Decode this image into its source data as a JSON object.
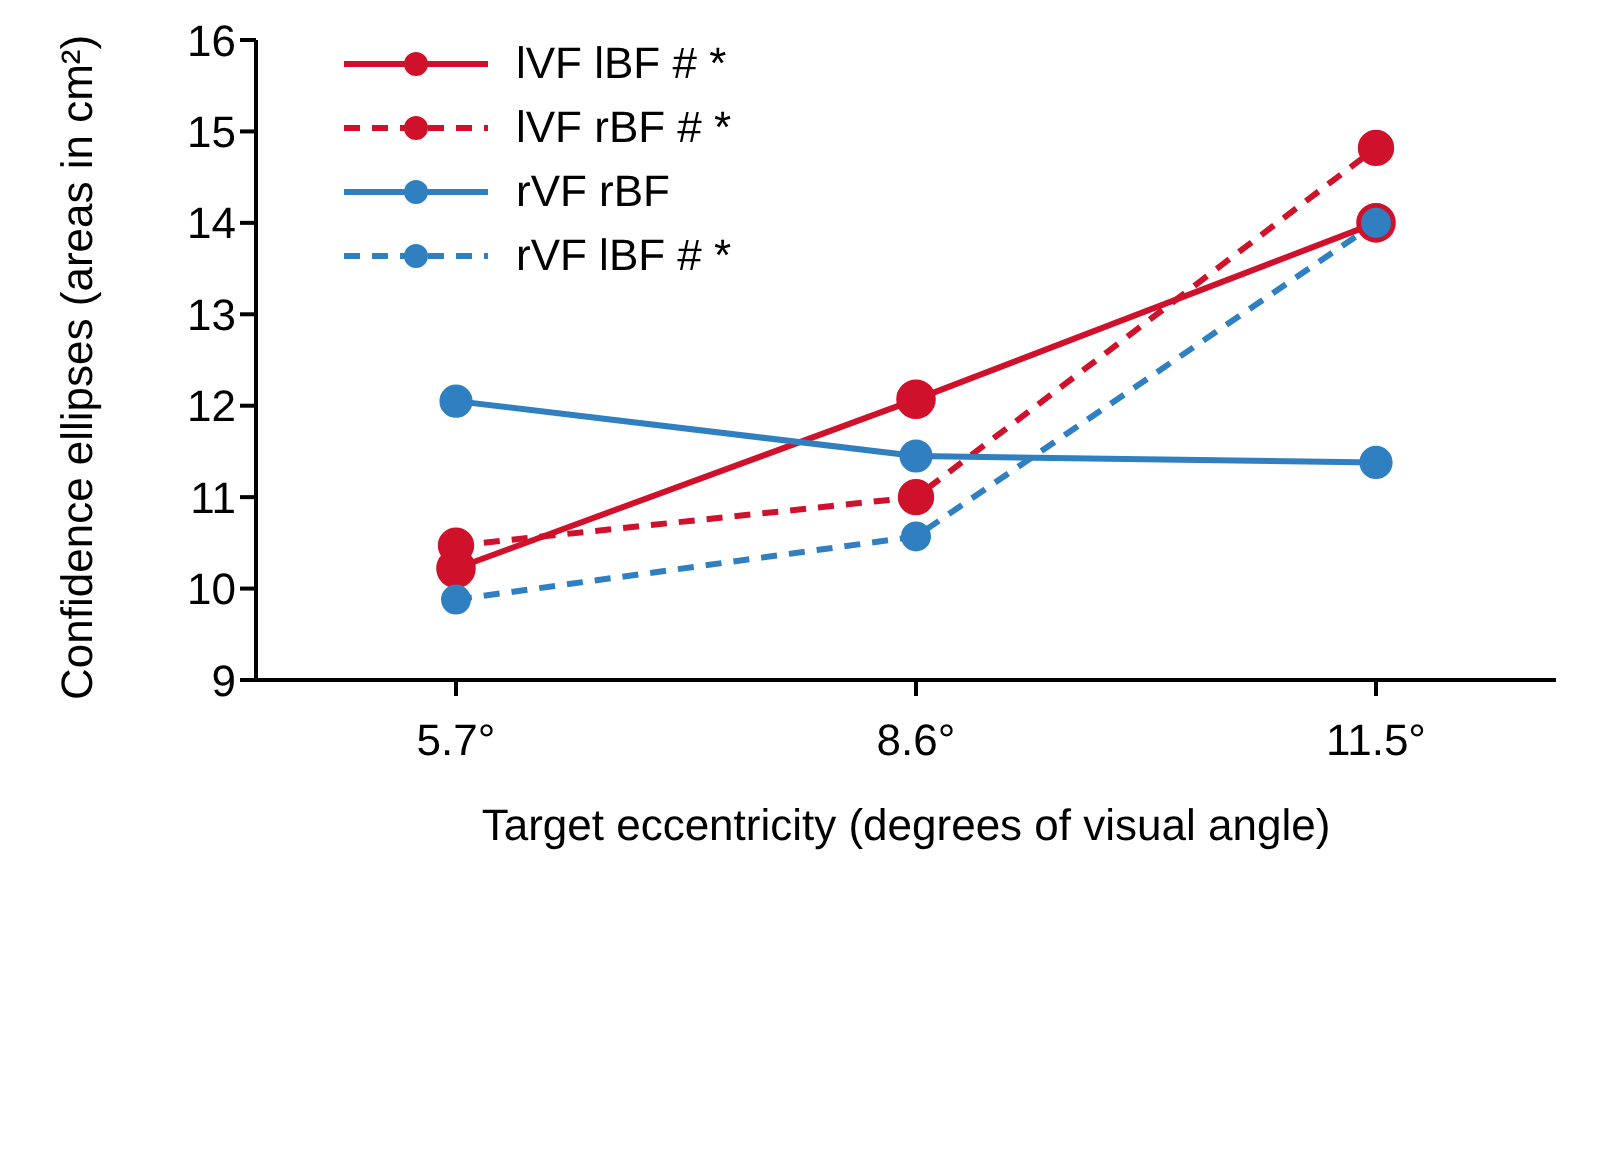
{
  "chart_data": {
    "type": "line",
    "xlabel": "Target eccentricity (degrees of visual angle)",
    "ylabel": "Confidence ellipses (areas in cm²)",
    "categories": [
      "5.7°",
      "8.6°",
      "11.5°"
    ],
    "series": [
      {
        "name": "lVF lBF # *",
        "color": "#d0112b",
        "values": [
          10.22,
          12.07,
          14.0
        ],
        "line_style": "solid"
      },
      {
        "name": "lVF rBF # *",
        "color": "#d0112b",
        "values": [
          10.47,
          11.0,
          14.82
        ],
        "line_style": "dashed"
      },
      {
        "name": "rVF rBF",
        "color": "#2f7fc1",
        "values": [
          12.05,
          11.45,
          11.38
        ],
        "line_style": "solid"
      },
      {
        "name": "rVF lBF # *",
        "color": "#2f7fc1",
        "values": [
          9.88,
          10.57,
          14.0
        ],
        "line_style": "dashed"
      }
    ],
    "ylim": [
      9,
      16
    ],
    "yticks": [
      9,
      10,
      11,
      12,
      13,
      14,
      15,
      16
    ],
    "grid": false,
    "legend": "top left",
    "marker": "circle"
  }
}
